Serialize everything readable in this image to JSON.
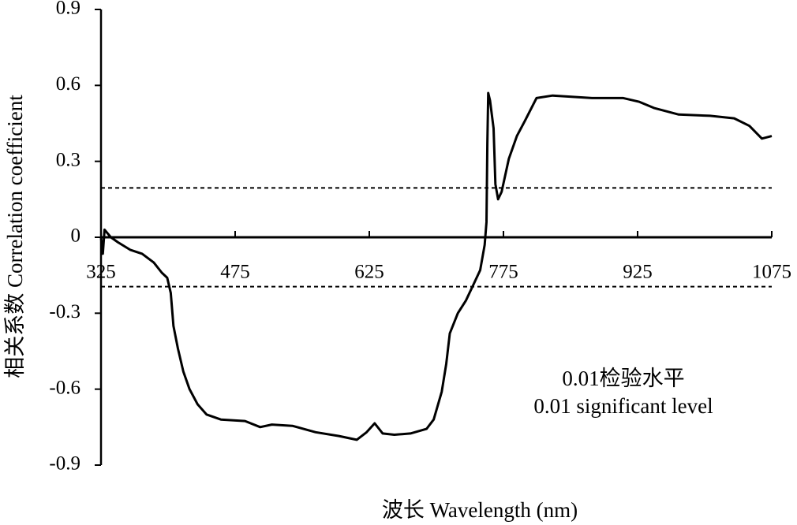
{
  "chart_data": {
    "type": "line",
    "xlabel": "波长 Wavelength (nm)",
    "ylabel": "相关系数 Correlation coefficient",
    "annotations": [
      "0.01检验水平",
      "0.01 significant level"
    ],
    "xlim": [
      325,
      1075
    ],
    "xticks": [
      325,
      475,
      625,
      775,
      925,
      1075
    ],
    "ylim": [
      -0.9,
      0.9
    ],
    "yticks": [
      0.9,
      0.6,
      0.3,
      0,
      -0.3,
      -0.6,
      -0.9
    ],
    "hlines": [
      0.195,
      -0.195
    ],
    "series": [
      {
        "color": "#000000",
        "x": [
          325,
          327,
          329,
          336,
          344,
          358,
          371,
          384,
          393,
          399,
          403,
          406,
          411,
          417,
          424,
          433,
          443,
          459,
          486,
          503,
          516,
          539,
          565,
          591,
          611,
          622,
          631,
          640,
          653,
          671,
          689,
          697,
          706,
          711,
          715,
          724,
          733,
          741,
          749,
          754,
          756,
          757,
          758,
          760,
          764,
          766,
          769,
          773,
          781,
          790,
          799,
          812,
          830,
          874,
          909,
          927,
          944,
          971,
          1006,
          1033,
          1050,
          1064,
          1075
        ],
        "values": [
          0,
          -0.065,
          0.03,
          0,
          -0.02,
          -0.05,
          -0.065,
          -0.1,
          -0.14,
          -0.16,
          -0.22,
          -0.35,
          -0.44,
          -0.53,
          -0.6,
          -0.66,
          -0.7,
          -0.72,
          -0.726,
          -0.75,
          -0.74,
          -0.745,
          -0.77,
          -0.785,
          -0.8,
          -0.77,
          -0.735,
          -0.775,
          -0.78,
          -0.775,
          -0.757,
          -0.72,
          -0.61,
          -0.5,
          -0.38,
          -0.3,
          -0.25,
          -0.19,
          -0.13,
          -0.03,
          0.06,
          0.37,
          0.57,
          0.54,
          0.43,
          0.21,
          0.15,
          0.18,
          0.31,
          0.4,
          0.46,
          0.55,
          0.56,
          0.55,
          0.55,
          0.535,
          0.51,
          0.485,
          0.48,
          0.47,
          0.44,
          0.39,
          0.4
        ]
      }
    ]
  }
}
